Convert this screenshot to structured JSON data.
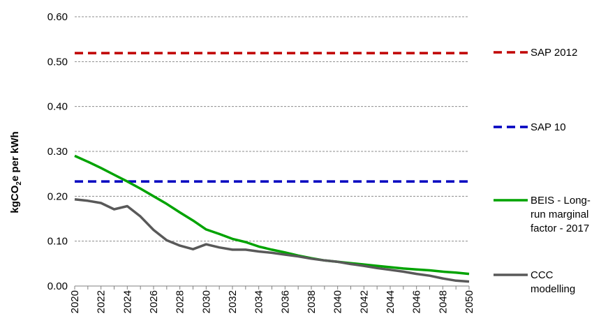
{
  "chart_data": {
    "type": "line",
    "title": "",
    "xlabel": "",
    "ylabel_main": "kgCO",
    "ylabel_sub": "2",
    "ylabel_rest": "e per kWh",
    "ylim": [
      0,
      0.6
    ],
    "y_ticks": [
      "0.00",
      "0.10",
      "0.20",
      "0.30",
      "0.40",
      "0.50",
      "0.60"
    ],
    "x": [
      2020,
      2021,
      2022,
      2023,
      2024,
      2025,
      2026,
      2027,
      2028,
      2029,
      2030,
      2031,
      2032,
      2033,
      2034,
      2035,
      2036,
      2037,
      2038,
      2039,
      2040,
      2041,
      2042,
      2043,
      2044,
      2045,
      2046,
      2047,
      2048,
      2049,
      2050
    ],
    "x_tick_labels": [
      "2020",
      "2022",
      "2024",
      "2026",
      "2028",
      "2030",
      "2032",
      "2034",
      "2036",
      "2038",
      "2040",
      "2042",
      "2044",
      "2046",
      "2048",
      "2050"
    ],
    "grid": true,
    "legend_position": "right",
    "series": [
      {
        "name": "SAP 2012",
        "legend_lines": [
          "SAP 2012"
        ],
        "color": "#c00000",
        "dash": true,
        "values": [
          0.519,
          0.519,
          0.519,
          0.519,
          0.519,
          0.519,
          0.519,
          0.519,
          0.519,
          0.519,
          0.519,
          0.519,
          0.519,
          0.519,
          0.519,
          0.519,
          0.519,
          0.519,
          0.519,
          0.519,
          0.519,
          0.519,
          0.519,
          0.519,
          0.519,
          0.519,
          0.519,
          0.519,
          0.519,
          0.519,
          0.519
        ]
      },
      {
        "name": "SAP 10",
        "legend_lines": [
          "SAP 10"
        ],
        "color": "#0000c0",
        "dash": true,
        "values": [
          0.233,
          0.233,
          0.233,
          0.233,
          0.233,
          0.233,
          0.233,
          0.233,
          0.233,
          0.233,
          0.233,
          0.233,
          0.233,
          0.233,
          0.233,
          0.233,
          0.233,
          0.233,
          0.233,
          0.233,
          0.233,
          0.233,
          0.233,
          0.233,
          0.233,
          0.233,
          0.233,
          0.233,
          0.233,
          0.233,
          0.233
        ]
      },
      {
        "name": "BEIS - Long-run marginal factor - 2017",
        "legend_lines": [
          "BEIS - Long-",
          "run marginal",
          "factor - 2017"
        ],
        "color": "#00a300",
        "dash": false,
        "values": [
          0.29,
          0.277,
          0.263,
          0.248,
          0.233,
          0.217,
          0.2,
          0.183,
          0.164,
          0.146,
          0.126,
          0.116,
          0.105,
          0.098,
          0.088,
          0.081,
          0.075,
          0.068,
          0.062,
          0.057,
          0.054,
          0.051,
          0.048,
          0.045,
          0.042,
          0.039,
          0.037,
          0.035,
          0.032,
          0.03,
          0.027
        ]
      },
      {
        "name": "CCC modelling",
        "legend_lines": [
          "CCC",
          "modelling"
        ],
        "color": "#595959",
        "dash": false,
        "values": [
          0.193,
          0.19,
          0.185,
          0.171,
          0.178,
          0.155,
          0.125,
          0.102,
          0.09,
          0.082,
          0.093,
          0.086,
          0.081,
          0.081,
          0.077,
          0.074,
          0.07,
          0.066,
          0.061,
          0.057,
          0.054,
          0.049,
          0.045,
          0.04,
          0.036,
          0.032,
          0.027,
          0.023,
          0.017,
          0.012,
          0.01
        ]
      }
    ]
  }
}
